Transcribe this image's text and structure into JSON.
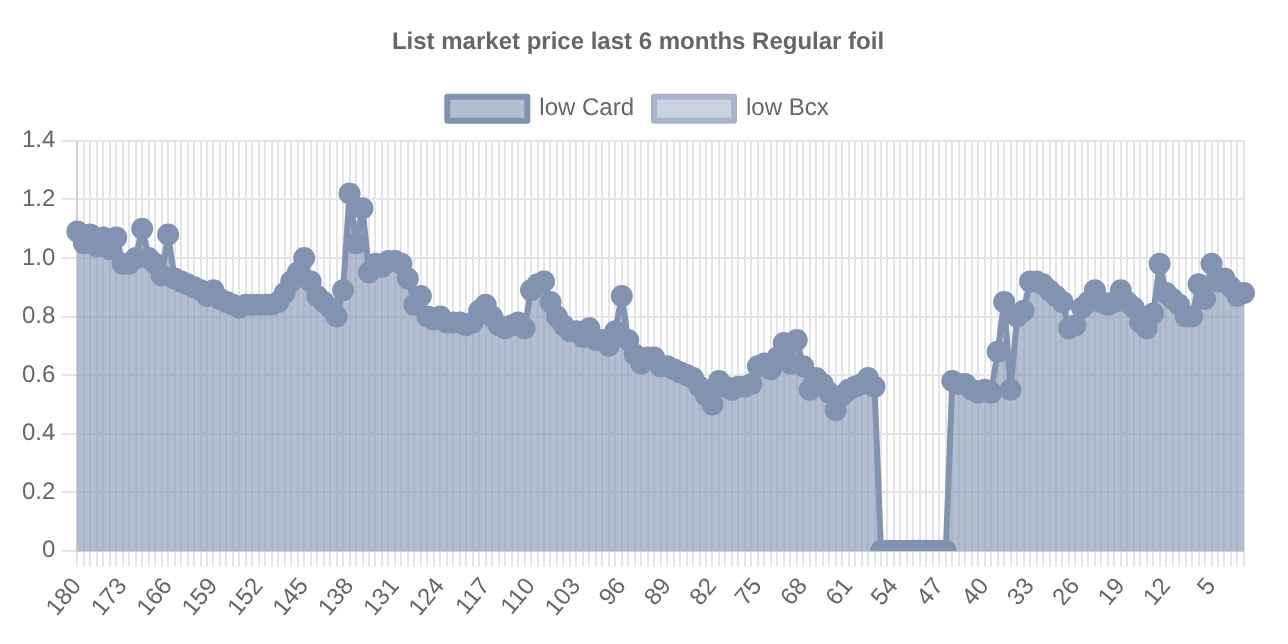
{
  "chart_data": {
    "type": "area",
    "title": "List market price last 6 months Regular foil",
    "categories": [
      "180",
      null,
      null,
      null,
      null,
      null,
      null,
      "173",
      null,
      null,
      null,
      null,
      null,
      null,
      "166",
      null,
      null,
      null,
      null,
      null,
      null,
      "159",
      null,
      null,
      null,
      null,
      null,
      null,
      "152",
      null,
      null,
      null,
      null,
      null,
      null,
      "145",
      null,
      null,
      null,
      null,
      null,
      null,
      "138",
      null,
      null,
      null,
      null,
      null,
      null,
      "131",
      null,
      null,
      null,
      null,
      null,
      null,
      "124",
      null,
      null,
      null,
      null,
      null,
      null,
      "117",
      null,
      null,
      null,
      null,
      null,
      null,
      "110",
      null,
      null,
      null,
      null,
      null,
      null,
      "103",
      null,
      null,
      null,
      null,
      null,
      null,
      "96",
      null,
      null,
      null,
      null,
      null,
      null,
      "89",
      null,
      null,
      null,
      null,
      null,
      null,
      "82",
      null,
      null,
      null,
      null,
      null,
      null,
      "75",
      null,
      null,
      null,
      null,
      null,
      null,
      "68",
      null,
      null,
      null,
      null,
      null,
      null,
      "61",
      null,
      null,
      null,
      null,
      null,
      null,
      "54",
      null,
      null,
      null,
      null,
      null,
      null,
      "47",
      null,
      null,
      null,
      null,
      null,
      null,
      "40",
      null,
      null,
      null,
      null,
      null,
      null,
      "33",
      null,
      null,
      null,
      null,
      null,
      null,
      "26",
      null,
      null,
      null,
      null,
      null,
      null,
      "19",
      null,
      null,
      null,
      null,
      null,
      null,
      "12",
      null,
      null,
      null,
      null,
      null,
      null,
      "5",
      null,
      null,
      null,
      null,
      null
    ],
    "series": [
      {
        "name": "low Card",
        "color": "#8193b0",
        "values": [
          1.09,
          1.05,
          1.08,
          1.04,
          1.07,
          1.03,
          1.07,
          0.98,
          0.98,
          1.0,
          1.1,
          1.0,
          0.98,
          0.94,
          1.08,
          0.93,
          0.92,
          0.91,
          0.9,
          0.89,
          0.87,
          0.89,
          0.86,
          0.85,
          0.84,
          0.83,
          0.84,
          0.84,
          0.84,
          0.84,
          0.84,
          0.85,
          0.88,
          0.92,
          0.95,
          1.0,
          0.92,
          0.87,
          0.85,
          0.83,
          0.8,
          0.89,
          1.22,
          1.05,
          1.17,
          0.95,
          0.98,
          0.97,
          0.99,
          0.99,
          0.98,
          0.93,
          0.84,
          0.87,
          0.8,
          0.79,
          0.8,
          0.78,
          0.78,
          0.78,
          0.77,
          0.78,
          0.82,
          0.84,
          0.8,
          0.77,
          0.76,
          0.77,
          0.78,
          0.76,
          0.89,
          0.91,
          0.92,
          0.85,
          0.8,
          0.77,
          0.75,
          0.75,
          0.73,
          0.76,
          0.72,
          0.72,
          0.7,
          0.75,
          0.87,
          0.72,
          0.67,
          0.64,
          0.66,
          0.66,
          0.63,
          0.63,
          0.62,
          0.61,
          0.6,
          0.59,
          0.56,
          0.53,
          0.5,
          0.58,
          0.56,
          0.55,
          0.56,
          0.56,
          0.57,
          0.63,
          0.64,
          0.62,
          0.66,
          0.71,
          0.64,
          0.72,
          0.63,
          0.55,
          0.59,
          0.57,
          0.54,
          0.48,
          0.53,
          0.55,
          0.56,
          0.57,
          0.59,
          0.56,
          0,
          0,
          0,
          0,
          0,
          0,
          0,
          0,
          0,
          0,
          0,
          0.58,
          0.57,
          0.57,
          0.55,
          0.54,
          0.55,
          0.54,
          0.68,
          0.85,
          0.55,
          0.8,
          0.82,
          0.92,
          0.92,
          0.91,
          0.89,
          0.87,
          0.85,
          0.76,
          0.77,
          0.83,
          0.85,
          0.89,
          0.85,
          0.84,
          0.85,
          0.89,
          0.85,
          0.83,
          0.78,
          0.76,
          0.81,
          0.98,
          0.88,
          0.86,
          0.84,
          0.8,
          0.8,
          0.91,
          0.86,
          0.98,
          0.92,
          0.93,
          0.9,
          0.87,
          0.88
        ]
      },
      {
        "name": "low Bcx",
        "color": "#a9b4cc",
        "values": [
          null,
          null,
          null,
          null,
          null,
          null,
          null,
          null,
          null,
          null,
          null,
          null,
          null,
          null,
          null,
          null,
          null,
          null,
          null,
          null,
          null,
          null,
          null,
          null,
          null,
          null,
          null,
          null,
          null,
          null,
          null,
          null,
          null,
          null,
          null,
          null,
          null,
          null,
          null,
          null,
          null,
          null,
          null,
          null,
          null,
          null,
          null,
          null,
          null,
          null,
          null,
          null,
          null,
          null,
          null,
          null,
          null,
          null,
          null,
          null,
          null,
          null,
          null,
          null,
          null,
          null,
          null,
          null,
          null,
          null,
          null,
          null,
          null,
          null,
          null,
          null,
          null,
          null,
          null,
          null,
          null,
          null,
          null,
          null,
          null,
          null,
          null,
          null,
          null,
          null,
          null,
          null,
          null,
          null,
          null,
          null,
          null,
          null,
          null,
          null,
          null,
          null,
          null,
          null,
          null,
          null,
          null,
          null,
          null,
          null,
          null,
          null,
          null,
          null,
          null,
          null,
          null,
          null,
          null,
          null,
          null,
          null,
          null,
          null,
          null,
          null,
          null,
          null,
          null,
          null,
          null,
          null,
          null,
          null,
          null,
          null,
          null,
          null,
          null,
          null,
          null,
          null,
          null,
          null,
          null,
          null,
          null,
          null,
          null,
          null,
          null,
          null,
          null,
          null,
          null,
          null,
          null,
          null,
          null,
          null,
          null,
          null,
          null,
          null,
          null,
          null,
          null,
          null,
          null,
          null,
          null,
          null,
          null,
          null,
          null,
          null,
          null,
          null,
          null,
          null,
          null
        ]
      }
    ],
    "ylim": [
      0,
      1.4
    ],
    "yticks": [
      0,
      0.2,
      0.4,
      0.6,
      0.8,
      {
        "value": 1,
        "label": "1.0"
      },
      1.2,
      1.4
    ],
    "grid": true,
    "legend": "top",
    "marker": "circle",
    "line_style": "solid"
  }
}
